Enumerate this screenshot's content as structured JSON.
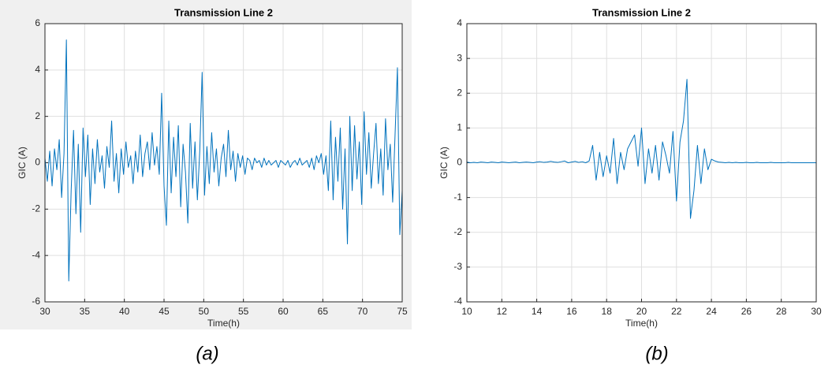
{
  "chart_data": [
    {
      "type": "line",
      "title": "Transmission Line 2",
      "x_label": "Time(h)",
      "y_label": "GIC (A)",
      "caption": "(a)",
      "xlim": [
        30,
        75
      ],
      "ylim": [
        -6,
        6
      ],
      "xticks": [
        30,
        35,
        40,
        45,
        50,
        55,
        60,
        65,
        70,
        75
      ],
      "yticks": [
        -6,
        -4,
        -2,
        0,
        2,
        4,
        6
      ],
      "grid": true,
      "series": [
        {
          "color": "#0072bd",
          "x": [
            30.0,
            30.3,
            30.6,
            30.9,
            31.2,
            31.5,
            31.8,
            32.1,
            32.4,
            32.7,
            33.0,
            33.3,
            33.6,
            33.9,
            34.2,
            34.5,
            34.8,
            35.1,
            35.4,
            35.7,
            36.0,
            36.3,
            36.6,
            36.9,
            37.2,
            37.5,
            37.8,
            38.1,
            38.4,
            38.7,
            39.0,
            39.3,
            39.6,
            39.9,
            40.2,
            40.5,
            40.8,
            41.1,
            41.4,
            41.7,
            42.0,
            42.3,
            42.6,
            42.9,
            43.2,
            43.5,
            43.8,
            44.1,
            44.4,
            44.7,
            45.0,
            45.3,
            45.6,
            45.9,
            46.2,
            46.5,
            46.8,
            47.1,
            47.4,
            47.7,
            48.0,
            48.3,
            48.6,
            48.9,
            49.2,
            49.5,
            49.8,
            50.1,
            50.4,
            50.7,
            51.0,
            51.3,
            51.6,
            51.9,
            52.2,
            52.5,
            52.8,
            53.1,
            53.4,
            53.7,
            54.0,
            54.3,
            54.6,
            54.9,
            55.2,
            55.5,
            55.8,
            56.1,
            56.4,
            56.7,
            57.0,
            57.3,
            57.6,
            57.9,
            58.2,
            58.5,
            58.8,
            59.1,
            59.4,
            59.7,
            60.0,
            60.3,
            60.6,
            60.9,
            61.2,
            61.5,
            61.8,
            62.1,
            62.4,
            62.7,
            63.0,
            63.3,
            63.6,
            63.9,
            64.2,
            64.5,
            64.8,
            65.1,
            65.4,
            65.7,
            66.0,
            66.3,
            66.6,
            66.9,
            67.2,
            67.5,
            67.8,
            68.1,
            68.4,
            68.7,
            69.0,
            69.3,
            69.6,
            69.9,
            70.2,
            70.5,
            70.8,
            71.1,
            71.4,
            71.7,
            72.0,
            72.3,
            72.6,
            72.9,
            73.2,
            73.5,
            73.8,
            74.1,
            74.4,
            74.7,
            75.0
          ],
          "values": [
            0.2,
            -0.8,
            0.5,
            -1.0,
            0.6,
            -0.3,
            1.0,
            -1.5,
            0.4,
            5.3,
            -5.1,
            -1.2,
            1.4,
            -2.2,
            0.8,
            -3.0,
            1.5,
            -0.6,
            1.2,
            -1.8,
            0.6,
            -0.9,
            1.0,
            -0.4,
            0.3,
            -1.1,
            0.7,
            -0.2,
            1.8,
            -0.8,
            0.4,
            -1.3,
            0.6,
            -0.5,
            0.9,
            -0.2,
            0.3,
            -0.9,
            0.5,
            -0.4,
            1.2,
            -0.6,
            0.4,
            0.9,
            -0.3,
            1.3,
            -0.1,
            0.7,
            -0.5,
            3.0,
            -1.0,
            -2.7,
            1.8,
            -1.3,
            1.1,
            -0.6,
            1.6,
            -1.9,
            0.8,
            -0.4,
            -2.6,
            1.7,
            -1.1,
            0.9,
            -1.6,
            0.5,
            3.9,
            -1.4,
            0.7,
            -0.9,
            1.3,
            -0.4,
            0.6,
            -1.0,
            0.2,
            0.8,
            -0.6,
            1.4,
            -0.3,
            0.5,
            -0.8,
            0.4,
            -0.2,
            0.3,
            -0.5,
            0.2,
            0.1,
            -0.3,
            0.2,
            0.0,
            0.1,
            -0.2,
            0.2,
            -0.1,
            0.1,
            -0.1,
            0.0,
            0.1,
            -0.2,
            0.1,
            0.0,
            -0.1,
            0.1,
            -0.2,
            0.0,
            0.1,
            -0.1,
            0.2,
            -0.1,
            0.0,
            0.1,
            -0.2,
            0.2,
            -0.3,
            0.3,
            0.0,
            0.4,
            -0.5,
            0.3,
            -1.2,
            1.8,
            -1.6,
            1.1,
            -0.8,
            1.5,
            -2.0,
            0.6,
            -3.5,
            2.0,
            -1.2,
            1.6,
            -0.7,
            0.9,
            -1.8,
            2.2,
            -0.5,
            1.3,
            -1.1,
            0.4,
            1.7,
            -0.9,
            0.6,
            -1.4,
            1.9,
            -0.3,
            0.8,
            -1.7,
            1.2,
            4.1,
            -3.1,
            -1.2
          ]
        }
      ]
    },
    {
      "type": "line",
      "title": "Transmission Line 2",
      "x_label": "Time(h)",
      "y_label": "GIC (A)",
      "caption": "(b)",
      "xlim": [
        10,
        30
      ],
      "ylim": [
        -4,
        4
      ],
      "xticks": [
        10,
        12,
        14,
        16,
        18,
        20,
        22,
        24,
        26,
        28,
        30
      ],
      "yticks": [
        -4,
        -3,
        -2,
        -1,
        0,
        1,
        2,
        3,
        4
      ],
      "grid": true,
      "series": [
        {
          "color": "#0072bd",
          "x": [
            10.0,
            10.2,
            10.4,
            10.6,
            10.8,
            11.0,
            11.2,
            11.4,
            11.6,
            11.8,
            12.0,
            12.2,
            12.4,
            12.6,
            12.8,
            13.0,
            13.2,
            13.4,
            13.6,
            13.8,
            14.0,
            14.2,
            14.4,
            14.6,
            14.8,
            15.0,
            15.2,
            15.4,
            15.6,
            15.8,
            16.0,
            16.2,
            16.4,
            16.6,
            16.8,
            17.0,
            17.2,
            17.4,
            17.6,
            17.8,
            18.0,
            18.2,
            18.4,
            18.6,
            18.8,
            19.0,
            19.2,
            19.4,
            19.6,
            19.8,
            20.0,
            20.2,
            20.4,
            20.6,
            20.8,
            21.0,
            21.2,
            21.4,
            21.6,
            21.8,
            22.0,
            22.2,
            22.4,
            22.6,
            22.8,
            23.0,
            23.2,
            23.4,
            23.6,
            23.8,
            24.0,
            24.2,
            24.4,
            24.6,
            24.8,
            25.0,
            25.2,
            25.4,
            25.6,
            25.8,
            26.0,
            26.2,
            26.4,
            26.6,
            26.8,
            27.0,
            27.2,
            27.4,
            27.6,
            27.8,
            28.0,
            28.2,
            28.4,
            28.6,
            28.8,
            29.0,
            29.2,
            29.4,
            29.6,
            29.8,
            30.0
          ],
          "values": [
            0.02,
            0.0,
            0.01,
            0.0,
            0.02,
            0.01,
            0.0,
            0.02,
            0.01,
            0.0,
            0.02,
            0.01,
            0.0,
            0.01,
            0.02,
            0.0,
            0.01,
            0.02,
            0.01,
            0.0,
            0.02,
            0.03,
            0.01,
            0.02,
            0.04,
            0.02,
            0.01,
            0.03,
            0.05,
            0.0,
            0.02,
            0.04,
            0.01,
            0.03,
            0.0,
            0.05,
            0.5,
            -0.5,
            0.3,
            -0.4,
            0.2,
            -0.3,
            0.7,
            -0.6,
            0.3,
            -0.2,
            0.4,
            0.6,
            0.8,
            -0.1,
            1.0,
            -0.6,
            0.4,
            -0.3,
            0.5,
            -0.5,
            0.6,
            0.2,
            -0.3,
            0.9,
            -1.1,
            0.6,
            1.2,
            2.4,
            -1.6,
            -0.8,
            0.5,
            -0.6,
            0.4,
            -0.2,
            0.1,
            0.05,
            0.02,
            0.01,
            0.0,
            0.01,
            0.0,
            0.01,
            0.0,
            0.0,
            0.01,
            0.0,
            0.0,
            0.01,
            0.0,
            0.0,
            0.0,
            0.01,
            0.0,
            0.0,
            0.0,
            0.0,
            0.01,
            0.0,
            0.0,
            0.0,
            0.0,
            0.0,
            0.0,
            0.0,
            0.0
          ]
        }
      ]
    }
  ]
}
